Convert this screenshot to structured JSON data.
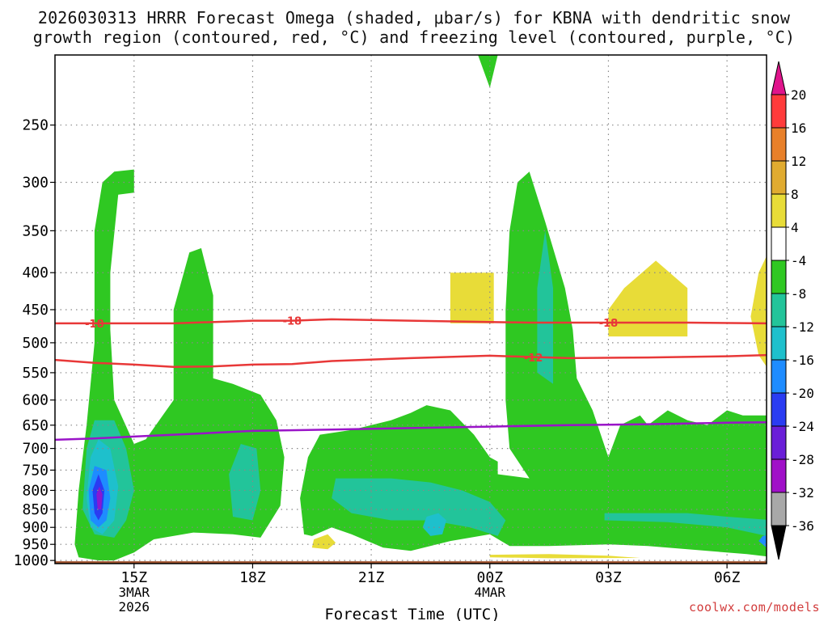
{
  "title_line1": "2026030313 HRRR Forecast Omega (shaded, μbar/s) for KBNA with dendritic snow",
  "title_line2": "growth region (contoured, red, °C) and freezing level (contoured, purple, °C)",
  "credit": "coolwx.com/models",
  "chart_data": {
    "type": "heatmap",
    "xlabel": "Forecast Time (UTC)",
    "x_ticks": [
      {
        "h": 15,
        "label": "15Z",
        "sub": [
          "3MAR",
          "2026"
        ]
      },
      {
        "h": 18,
        "label": "18Z",
        "sub": []
      },
      {
        "h": 21,
        "label": "21Z",
        "sub": []
      },
      {
        "h": 24,
        "label": "00Z",
        "sub": [
          "4MAR"
        ]
      },
      {
        "h": 27,
        "label": "03Z",
        "sub": []
      },
      {
        "h": 30,
        "label": "06Z",
        "sub": []
      }
    ],
    "xlim": [
      13,
      31
    ],
    "ylabel": "",
    "y_ticks": [
      250,
      300,
      350,
      400,
      450,
      500,
      550,
      600,
      650,
      700,
      750,
      800,
      850,
      900,
      950,
      1000
    ],
    "ylim_hPa": [
      200,
      1010
    ],
    "y_scale": "log-pressure",
    "grid": true,
    "colorbar": {
      "levels": [
        "20",
        "16",
        "12",
        "8",
        "4",
        "-4",
        "-8",
        "-12",
        "-16",
        "-20",
        "-24",
        "-28",
        "-32",
        "-36"
      ],
      "colors": [
        "#ff3b3b",
        "#e8802a",
        "#e0ab30",
        "#e8dc38",
        "#ffffff",
        "#2fc822",
        "#22c49a",
        "#1ec0cc",
        "#1e8cff",
        "#2a3cf2",
        "#6a1ed8",
        "#a010c8",
        "#a8a8a8"
      ],
      "top_arrow_color": "#e0148c",
      "bottom_arrow_color": "#000000"
    },
    "shading_colors": {
      "green": "#2fc822",
      "teal": "#22c49a",
      "cyan": "#1ec0cc",
      "blue": "#1e8cff",
      "darkblue": "#2a3cf2",
      "purple": "#8a18d0",
      "yellow": "#e8dc38",
      "orange": "#e0ab30",
      "ground": "#a0522d"
    },
    "contours": [
      {
        "label": "-18",
        "color": "#e83838",
        "points": [
          [
            13,
            470
          ],
          [
            14,
            470
          ],
          [
            16,
            470
          ],
          [
            18,
            466
          ],
          [
            19,
            466
          ],
          [
            20,
            464
          ],
          [
            22,
            466
          ],
          [
            24,
            468
          ],
          [
            25,
            469
          ],
          [
            27,
            469
          ],
          [
            29,
            469
          ],
          [
            31,
            470
          ]
        ]
      },
      {
        "label": "-12",
        "color": "#e83838",
        "points": [
          [
            13,
            528
          ],
          [
            14,
            533
          ],
          [
            15,
            536
          ],
          [
            16,
            540
          ],
          [
            17,
            539
          ],
          [
            18,
            536
          ],
          [
            19,
            535
          ],
          [
            20,
            530
          ],
          [
            22,
            525
          ],
          [
            24,
            521
          ],
          [
            26,
            525
          ],
          [
            28,
            524
          ],
          [
            30,
            522
          ],
          [
            31,
            520
          ]
        ]
      },
      {
        "label": "0",
        "color": "#9a14c8",
        "points": [
          [
            13,
            681
          ],
          [
            14,
            678
          ],
          [
            15,
            674
          ],
          [
            16,
            670
          ],
          [
            17,
            666
          ],
          [
            18,
            662
          ],
          [
            20,
            659
          ],
          [
            22,
            656
          ],
          [
            24,
            653
          ],
          [
            26,
            650
          ],
          [
            28,
            648
          ],
          [
            30,
            645
          ],
          [
            31,
            644
          ]
        ]
      }
    ],
    "contour_labels": [
      {
        "text": "-18",
        "x": 14.0,
        "p": 470
      },
      {
        "text": "-18",
        "x": 19.0,
        "p": 466
      },
      {
        "text": "-18",
        "x": 27.0,
        "p": 469
      },
      {
        "text": "-12",
        "x": 25.1,
        "p": 524
      }
    ]
  }
}
